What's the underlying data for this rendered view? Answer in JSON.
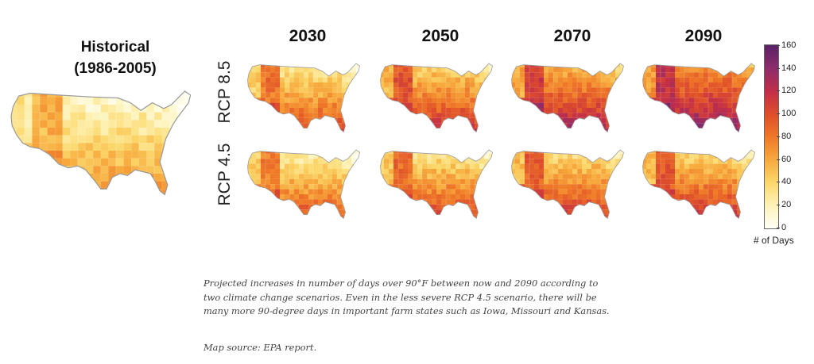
{
  "historical": {
    "title_line1": "Historical",
    "title_line2": "(1986-2005)"
  },
  "years": [
    "2030",
    "2050",
    "2070",
    "2090"
  ],
  "scenarios": [
    "RCP 8.5",
    "RCP 4.5"
  ],
  "legend": {
    "title": "# of Days",
    "ticks": [
      "160",
      "140",
      "120",
      "100",
      "80",
      "60",
      "40",
      "20",
      "0"
    ],
    "min": 0,
    "max": 160,
    "colors": [
      "#fffff6",
      "#fdf3b8",
      "#fbd76a",
      "#f7a93d",
      "#ef7828",
      "#de4d2b",
      "#c22e49",
      "#8c2c6b",
      "#5b2268"
    ]
  },
  "caption": "Projected increases in number of days over 90°F between now and 2090 according to two climate change scenarios. Even in the less severe RCP 4.5 scenario, there will be many more 90-degree days in important farm states such as Iowa, Missouri and Kansas.",
  "source": "Map source: EPA report.",
  "maps": {
    "historical": {
      "south": 82,
      "west": 58,
      "north": 8
    },
    "rcp85": [
      {
        "year": "2030",
        "south": 118,
        "west": 85,
        "north": 22
      },
      {
        "year": "2050",
        "south": 132,
        "west": 100,
        "north": 35
      },
      {
        "year": "2070",
        "south": 145,
        "west": 112,
        "north": 50
      },
      {
        "year": "2090",
        "south": 155,
        "west": 122,
        "north": 65
      }
    ],
    "rcp45": [
      {
        "year": "2030",
        "south": 112,
        "west": 80,
        "north": 18
      },
      {
        "year": "2050",
        "south": 120,
        "west": 88,
        "north": 25
      },
      {
        "year": "2070",
        "south": 128,
        "west": 95,
        "north": 30
      },
      {
        "year": "2090",
        "south": 130,
        "west": 98,
        "north": 32
      }
    ]
  }
}
